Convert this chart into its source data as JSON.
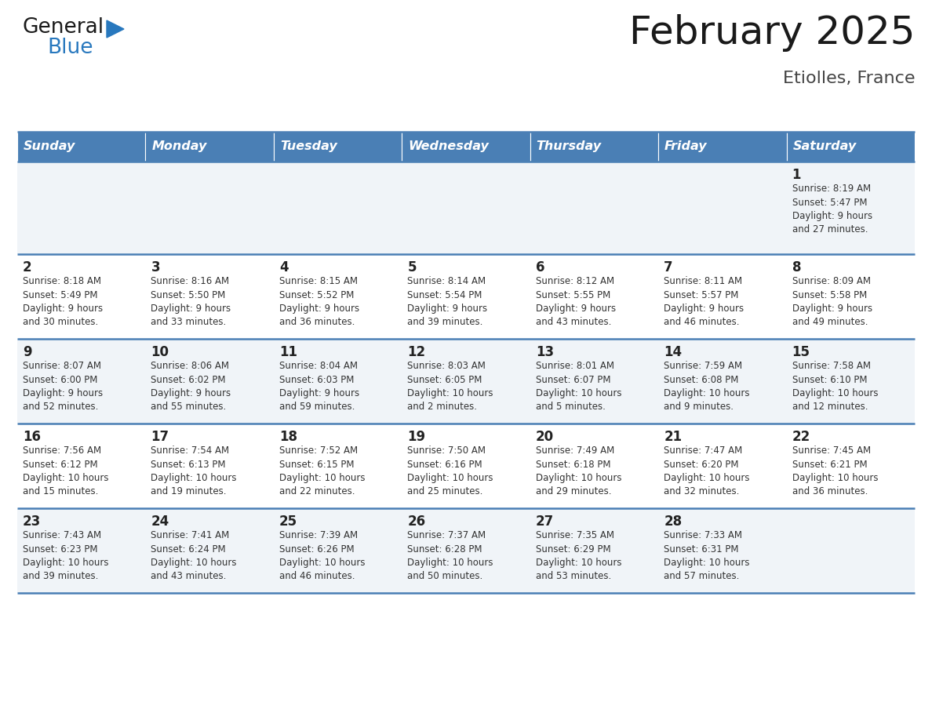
{
  "title": "February 2025",
  "subtitle": "Etiolles, France",
  "days_of_week": [
    "Sunday",
    "Monday",
    "Tuesday",
    "Wednesday",
    "Thursday",
    "Friday",
    "Saturday"
  ],
  "header_bg": "#4a7fb5",
  "header_text": "#FFFFFF",
  "row_bg_odd": "#f0f4f8",
  "row_bg_even": "#FFFFFF",
  "text_color": "#333333",
  "date_color": "#222222",
  "separator_color": "#4a7fb5",
  "logo_general_color": "#1a1a1a",
  "logo_blue_color": "#2878BE",
  "logo_triangle_color": "#2878BE",
  "calendar_data": [
    [
      {
        "day": null,
        "sunrise": null,
        "sunset": null,
        "daylight": null
      },
      {
        "day": null,
        "sunrise": null,
        "sunset": null,
        "daylight": null
      },
      {
        "day": null,
        "sunrise": null,
        "sunset": null,
        "daylight": null
      },
      {
        "day": null,
        "sunrise": null,
        "sunset": null,
        "daylight": null
      },
      {
        "day": null,
        "sunrise": null,
        "sunset": null,
        "daylight": null
      },
      {
        "day": null,
        "sunrise": null,
        "sunset": null,
        "daylight": null
      },
      {
        "day": 1,
        "sunrise": "8:19 AM",
        "sunset": "5:47 PM",
        "daylight": "9 hours and 27 minutes."
      }
    ],
    [
      {
        "day": 2,
        "sunrise": "8:18 AM",
        "sunset": "5:49 PM",
        "daylight": "9 hours and 30 minutes."
      },
      {
        "day": 3,
        "sunrise": "8:16 AM",
        "sunset": "5:50 PM",
        "daylight": "9 hours and 33 minutes."
      },
      {
        "day": 4,
        "sunrise": "8:15 AM",
        "sunset": "5:52 PM",
        "daylight": "9 hours and 36 minutes."
      },
      {
        "day": 5,
        "sunrise": "8:14 AM",
        "sunset": "5:54 PM",
        "daylight": "9 hours and 39 minutes."
      },
      {
        "day": 6,
        "sunrise": "8:12 AM",
        "sunset": "5:55 PM",
        "daylight": "9 hours and 43 minutes."
      },
      {
        "day": 7,
        "sunrise": "8:11 AM",
        "sunset": "5:57 PM",
        "daylight": "9 hours and 46 minutes."
      },
      {
        "day": 8,
        "sunrise": "8:09 AM",
        "sunset": "5:58 PM",
        "daylight": "9 hours and 49 minutes."
      }
    ],
    [
      {
        "day": 9,
        "sunrise": "8:07 AM",
        "sunset": "6:00 PM",
        "daylight": "9 hours and 52 minutes."
      },
      {
        "day": 10,
        "sunrise": "8:06 AM",
        "sunset": "6:02 PM",
        "daylight": "9 hours and 55 minutes."
      },
      {
        "day": 11,
        "sunrise": "8:04 AM",
        "sunset": "6:03 PM",
        "daylight": "9 hours and 59 minutes."
      },
      {
        "day": 12,
        "sunrise": "8:03 AM",
        "sunset": "6:05 PM",
        "daylight": "10 hours and 2 minutes."
      },
      {
        "day": 13,
        "sunrise": "8:01 AM",
        "sunset": "6:07 PM",
        "daylight": "10 hours and 5 minutes."
      },
      {
        "day": 14,
        "sunrise": "7:59 AM",
        "sunset": "6:08 PM",
        "daylight": "10 hours and 9 minutes."
      },
      {
        "day": 15,
        "sunrise": "7:58 AM",
        "sunset": "6:10 PM",
        "daylight": "10 hours and 12 minutes."
      }
    ],
    [
      {
        "day": 16,
        "sunrise": "7:56 AM",
        "sunset": "6:12 PM",
        "daylight": "10 hours and 15 minutes."
      },
      {
        "day": 17,
        "sunrise": "7:54 AM",
        "sunset": "6:13 PM",
        "daylight": "10 hours and 19 minutes."
      },
      {
        "day": 18,
        "sunrise": "7:52 AM",
        "sunset": "6:15 PM",
        "daylight": "10 hours and 22 minutes."
      },
      {
        "day": 19,
        "sunrise": "7:50 AM",
        "sunset": "6:16 PM",
        "daylight": "10 hours and 25 minutes."
      },
      {
        "day": 20,
        "sunrise": "7:49 AM",
        "sunset": "6:18 PM",
        "daylight": "10 hours and 29 minutes."
      },
      {
        "day": 21,
        "sunrise": "7:47 AM",
        "sunset": "6:20 PM",
        "daylight": "10 hours and 32 minutes."
      },
      {
        "day": 22,
        "sunrise": "7:45 AM",
        "sunset": "6:21 PM",
        "daylight": "10 hours and 36 minutes."
      }
    ],
    [
      {
        "day": 23,
        "sunrise": "7:43 AM",
        "sunset": "6:23 PM",
        "daylight": "10 hours and 39 minutes."
      },
      {
        "day": 24,
        "sunrise": "7:41 AM",
        "sunset": "6:24 PM",
        "daylight": "10 hours and 43 minutes."
      },
      {
        "day": 25,
        "sunrise": "7:39 AM",
        "sunset": "6:26 PM",
        "daylight": "10 hours and 46 minutes."
      },
      {
        "day": 26,
        "sunrise": "7:37 AM",
        "sunset": "6:28 PM",
        "daylight": "10 hours and 50 minutes."
      },
      {
        "day": 27,
        "sunrise": "7:35 AM",
        "sunset": "6:29 PM",
        "daylight": "10 hours and 53 minutes."
      },
      {
        "day": 28,
        "sunrise": "7:33 AM",
        "sunset": "6:31 PM",
        "daylight": "10 hours and 57 minutes."
      },
      {
        "day": null,
        "sunrise": null,
        "sunset": null,
        "daylight": null
      }
    ]
  ]
}
